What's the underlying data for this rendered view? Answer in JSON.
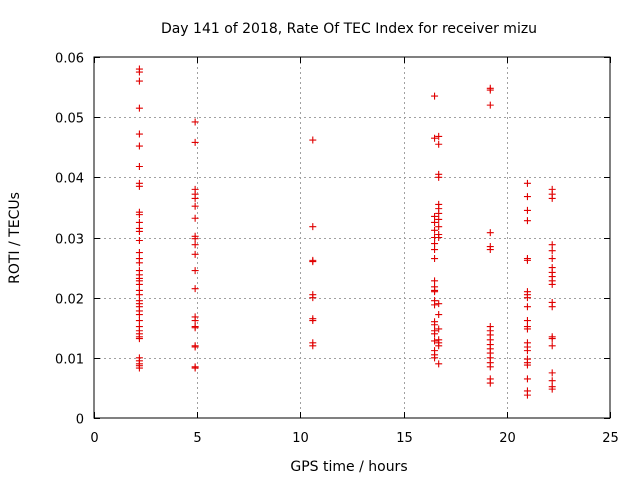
{
  "chart_data": {
    "type": "scatter",
    "title": "Day 141 of 2018, Rate Of TEC Index for receiver mizu",
    "xlabel": "GPS time / hours",
    "ylabel": "ROTI / TECUs",
    "xlim": [
      0,
      25
    ],
    "ylim": [
      0,
      0.06
    ],
    "xticks": [
      0,
      5,
      10,
      15,
      20,
      25
    ],
    "xtick_labels": [
      "0",
      "5",
      "10",
      "15",
      "20",
      "25"
    ],
    "yticks": [
      0,
      0.01,
      0.02,
      0.03,
      0.04,
      0.05,
      0.06
    ],
    "ytick_labels": [
      "0",
      "0.01",
      "0.02",
      "0.03",
      "0.04",
      "0.05",
      "0.06"
    ],
    "grid": true,
    "marker": "+",
    "color": "#e00000",
    "series": [
      {
        "name": "ROTI",
        "points": [
          [
            2.2,
            0.058
          ],
          [
            2.2,
            0.0575
          ],
          [
            2.2,
            0.056
          ],
          [
            2.2,
            0.0515
          ],
          [
            2.2,
            0.0472
          ],
          [
            2.2,
            0.0452
          ],
          [
            2.2,
            0.0418
          ],
          [
            2.2,
            0.039
          ],
          [
            2.2,
            0.0385
          ],
          [
            2.2,
            0.0342
          ],
          [
            2.2,
            0.0338
          ],
          [
            2.2,
            0.0325
          ],
          [
            2.2,
            0.0315
          ],
          [
            2.2,
            0.031
          ],
          [
            2.2,
            0.0295
          ],
          [
            2.2,
            0.0275
          ],
          [
            2.2,
            0.0265
          ],
          [
            2.2,
            0.0258
          ],
          [
            2.2,
            0.0245
          ],
          [
            2.2,
            0.0238
          ],
          [
            2.2,
            0.0232
          ],
          [
            2.2,
            0.0228
          ],
          [
            2.2,
            0.0222
          ],
          [
            2.2,
            0.0212
          ],
          [
            2.2,
            0.0205
          ],
          [
            2.2,
            0.0195
          ],
          [
            2.2,
            0.019
          ],
          [
            2.2,
            0.0185
          ],
          [
            2.2,
            0.0178
          ],
          [
            2.2,
            0.0172
          ],
          [
            2.2,
            0.0162
          ],
          [
            2.2,
            0.0152
          ],
          [
            2.2,
            0.0145
          ],
          [
            2.2,
            0.014
          ],
          [
            2.2,
            0.0135
          ],
          [
            2.2,
            0.0132
          ],
          [
            2.2,
            0.01
          ],
          [
            2.2,
            0.0095
          ],
          [
            2.2,
            0.009
          ],
          [
            2.2,
            0.0087
          ],
          [
            2.2,
            0.0083
          ],
          [
            4.9,
            0.0492
          ],
          [
            4.9,
            0.0458
          ],
          [
            4.9,
            0.038
          ],
          [
            4.9,
            0.0372
          ],
          [
            4.9,
            0.0365
          ],
          [
            4.9,
            0.0352
          ],
          [
            4.9,
            0.0332
          ],
          [
            4.9,
            0.0302
          ],
          [
            4.9,
            0.0298
          ],
          [
            4.9,
            0.0288
          ],
          [
            4.9,
            0.0272
          ],
          [
            4.9,
            0.0245
          ],
          [
            4.9,
            0.0215
          ],
          [
            4.9,
            0.0168
          ],
          [
            4.9,
            0.0162
          ],
          [
            4.9,
            0.0152
          ],
          [
            4.9,
            0.015
          ],
          [
            4.9,
            0.012
          ],
          [
            4.9,
            0.0118
          ],
          [
            4.9,
            0.0085
          ],
          [
            4.9,
            0.0083
          ],
          [
            10.6,
            0.0462
          ],
          [
            10.6,
            0.0318
          ],
          [
            10.6,
            0.0262
          ],
          [
            10.6,
            0.026
          ],
          [
            10.6,
            0.0205
          ],
          [
            10.6,
            0.02
          ],
          [
            10.6,
            0.0165
          ],
          [
            10.6,
            0.0162
          ],
          [
            10.6,
            0.0125
          ],
          [
            10.6,
            0.012
          ],
          [
            16.5,
            0.0535
          ],
          [
            16.5,
            0.0465
          ],
          [
            16.5,
            0.0335
          ],
          [
            16.5,
            0.0325
          ],
          [
            16.5,
            0.0312
          ],
          [
            16.5,
            0.03
          ],
          [
            16.5,
            0.029
          ],
          [
            16.5,
            0.028
          ],
          [
            16.5,
            0.0265
          ],
          [
            16.5,
            0.0228
          ],
          [
            16.5,
            0.0218
          ],
          [
            16.5,
            0.0212
          ],
          [
            16.5,
            0.021
          ],
          [
            16.5,
            0.0195
          ],
          [
            16.5,
            0.0188
          ],
          [
            16.5,
            0.016
          ],
          [
            16.5,
            0.0155
          ],
          [
            16.5,
            0.0145
          ],
          [
            16.5,
            0.014
          ],
          [
            16.5,
            0.0128
          ],
          [
            16.5,
            0.0112
          ],
          [
            16.5,
            0.0105
          ],
          [
            16.5,
            0.01
          ],
          [
            16.7,
            0.0468
          ],
          [
            16.7,
            0.0455
          ],
          [
            16.7,
            0.0405
          ],
          [
            16.7,
            0.04
          ],
          [
            16.7,
            0.0355
          ],
          [
            16.7,
            0.0348
          ],
          [
            16.7,
            0.034
          ],
          [
            16.7,
            0.033
          ],
          [
            16.7,
            0.0318
          ],
          [
            16.7,
            0.0305
          ],
          [
            16.7,
            0.03
          ],
          [
            16.7,
            0.019
          ],
          [
            16.7,
            0.0172
          ],
          [
            16.7,
            0.0148
          ],
          [
            16.7,
            0.013
          ],
          [
            16.7,
            0.0125
          ],
          [
            16.7,
            0.012
          ],
          [
            16.7,
            0.009
          ],
          [
            19.2,
            0.0548
          ],
          [
            19.2,
            0.0545
          ],
          [
            19.2,
            0.052
          ],
          [
            19.2,
            0.0308
          ],
          [
            19.2,
            0.0285
          ],
          [
            19.2,
            0.028
          ],
          [
            19.2,
            0.0152
          ],
          [
            19.2,
            0.0145
          ],
          [
            19.2,
            0.0138
          ],
          [
            19.2,
            0.013
          ],
          [
            19.2,
            0.0122
          ],
          [
            19.2,
            0.0115
          ],
          [
            19.2,
            0.0108
          ],
          [
            19.2,
            0.01
          ],
          [
            19.2,
            0.0092
          ],
          [
            19.2,
            0.0085
          ],
          [
            19.2,
            0.0065
          ],
          [
            19.2,
            0.0058
          ],
          [
            21.0,
            0.039
          ],
          [
            21.0,
            0.0368
          ],
          [
            21.0,
            0.0345
          ],
          [
            21.0,
            0.0328
          ],
          [
            21.0,
            0.0265
          ],
          [
            21.0,
            0.0262
          ],
          [
            21.0,
            0.021
          ],
          [
            21.0,
            0.0205
          ],
          [
            21.0,
            0.02
          ],
          [
            21.0,
            0.0185
          ],
          [
            21.0,
            0.0162
          ],
          [
            21.0,
            0.0152
          ],
          [
            21.0,
            0.0148
          ],
          [
            21.0,
            0.0125
          ],
          [
            21.0,
            0.0118
          ],
          [
            21.0,
            0.0112
          ],
          [
            21.0,
            0.0098
          ],
          [
            21.0,
            0.0092
          ],
          [
            21.0,
            0.0088
          ],
          [
            21.0,
            0.0065
          ],
          [
            21.0,
            0.0045
          ],
          [
            21.0,
            0.0038
          ],
          [
            22.2,
            0.038
          ],
          [
            22.2,
            0.0372
          ],
          [
            22.2,
            0.0365
          ],
          [
            22.2,
            0.0288
          ],
          [
            22.2,
            0.0278
          ],
          [
            22.2,
            0.0265
          ],
          [
            22.2,
            0.025
          ],
          [
            22.2,
            0.0242
          ],
          [
            22.2,
            0.0235
          ],
          [
            22.2,
            0.0228
          ],
          [
            22.2,
            0.0222
          ],
          [
            22.2,
            0.0192
          ],
          [
            22.2,
            0.0185
          ],
          [
            22.2,
            0.0135
          ],
          [
            22.2,
            0.0132
          ],
          [
            22.2,
            0.012
          ],
          [
            22.2,
            0.0075
          ],
          [
            22.2,
            0.0062
          ],
          [
            22.2,
            0.0052
          ],
          [
            22.2,
            0.0048
          ]
        ]
      }
    ]
  }
}
